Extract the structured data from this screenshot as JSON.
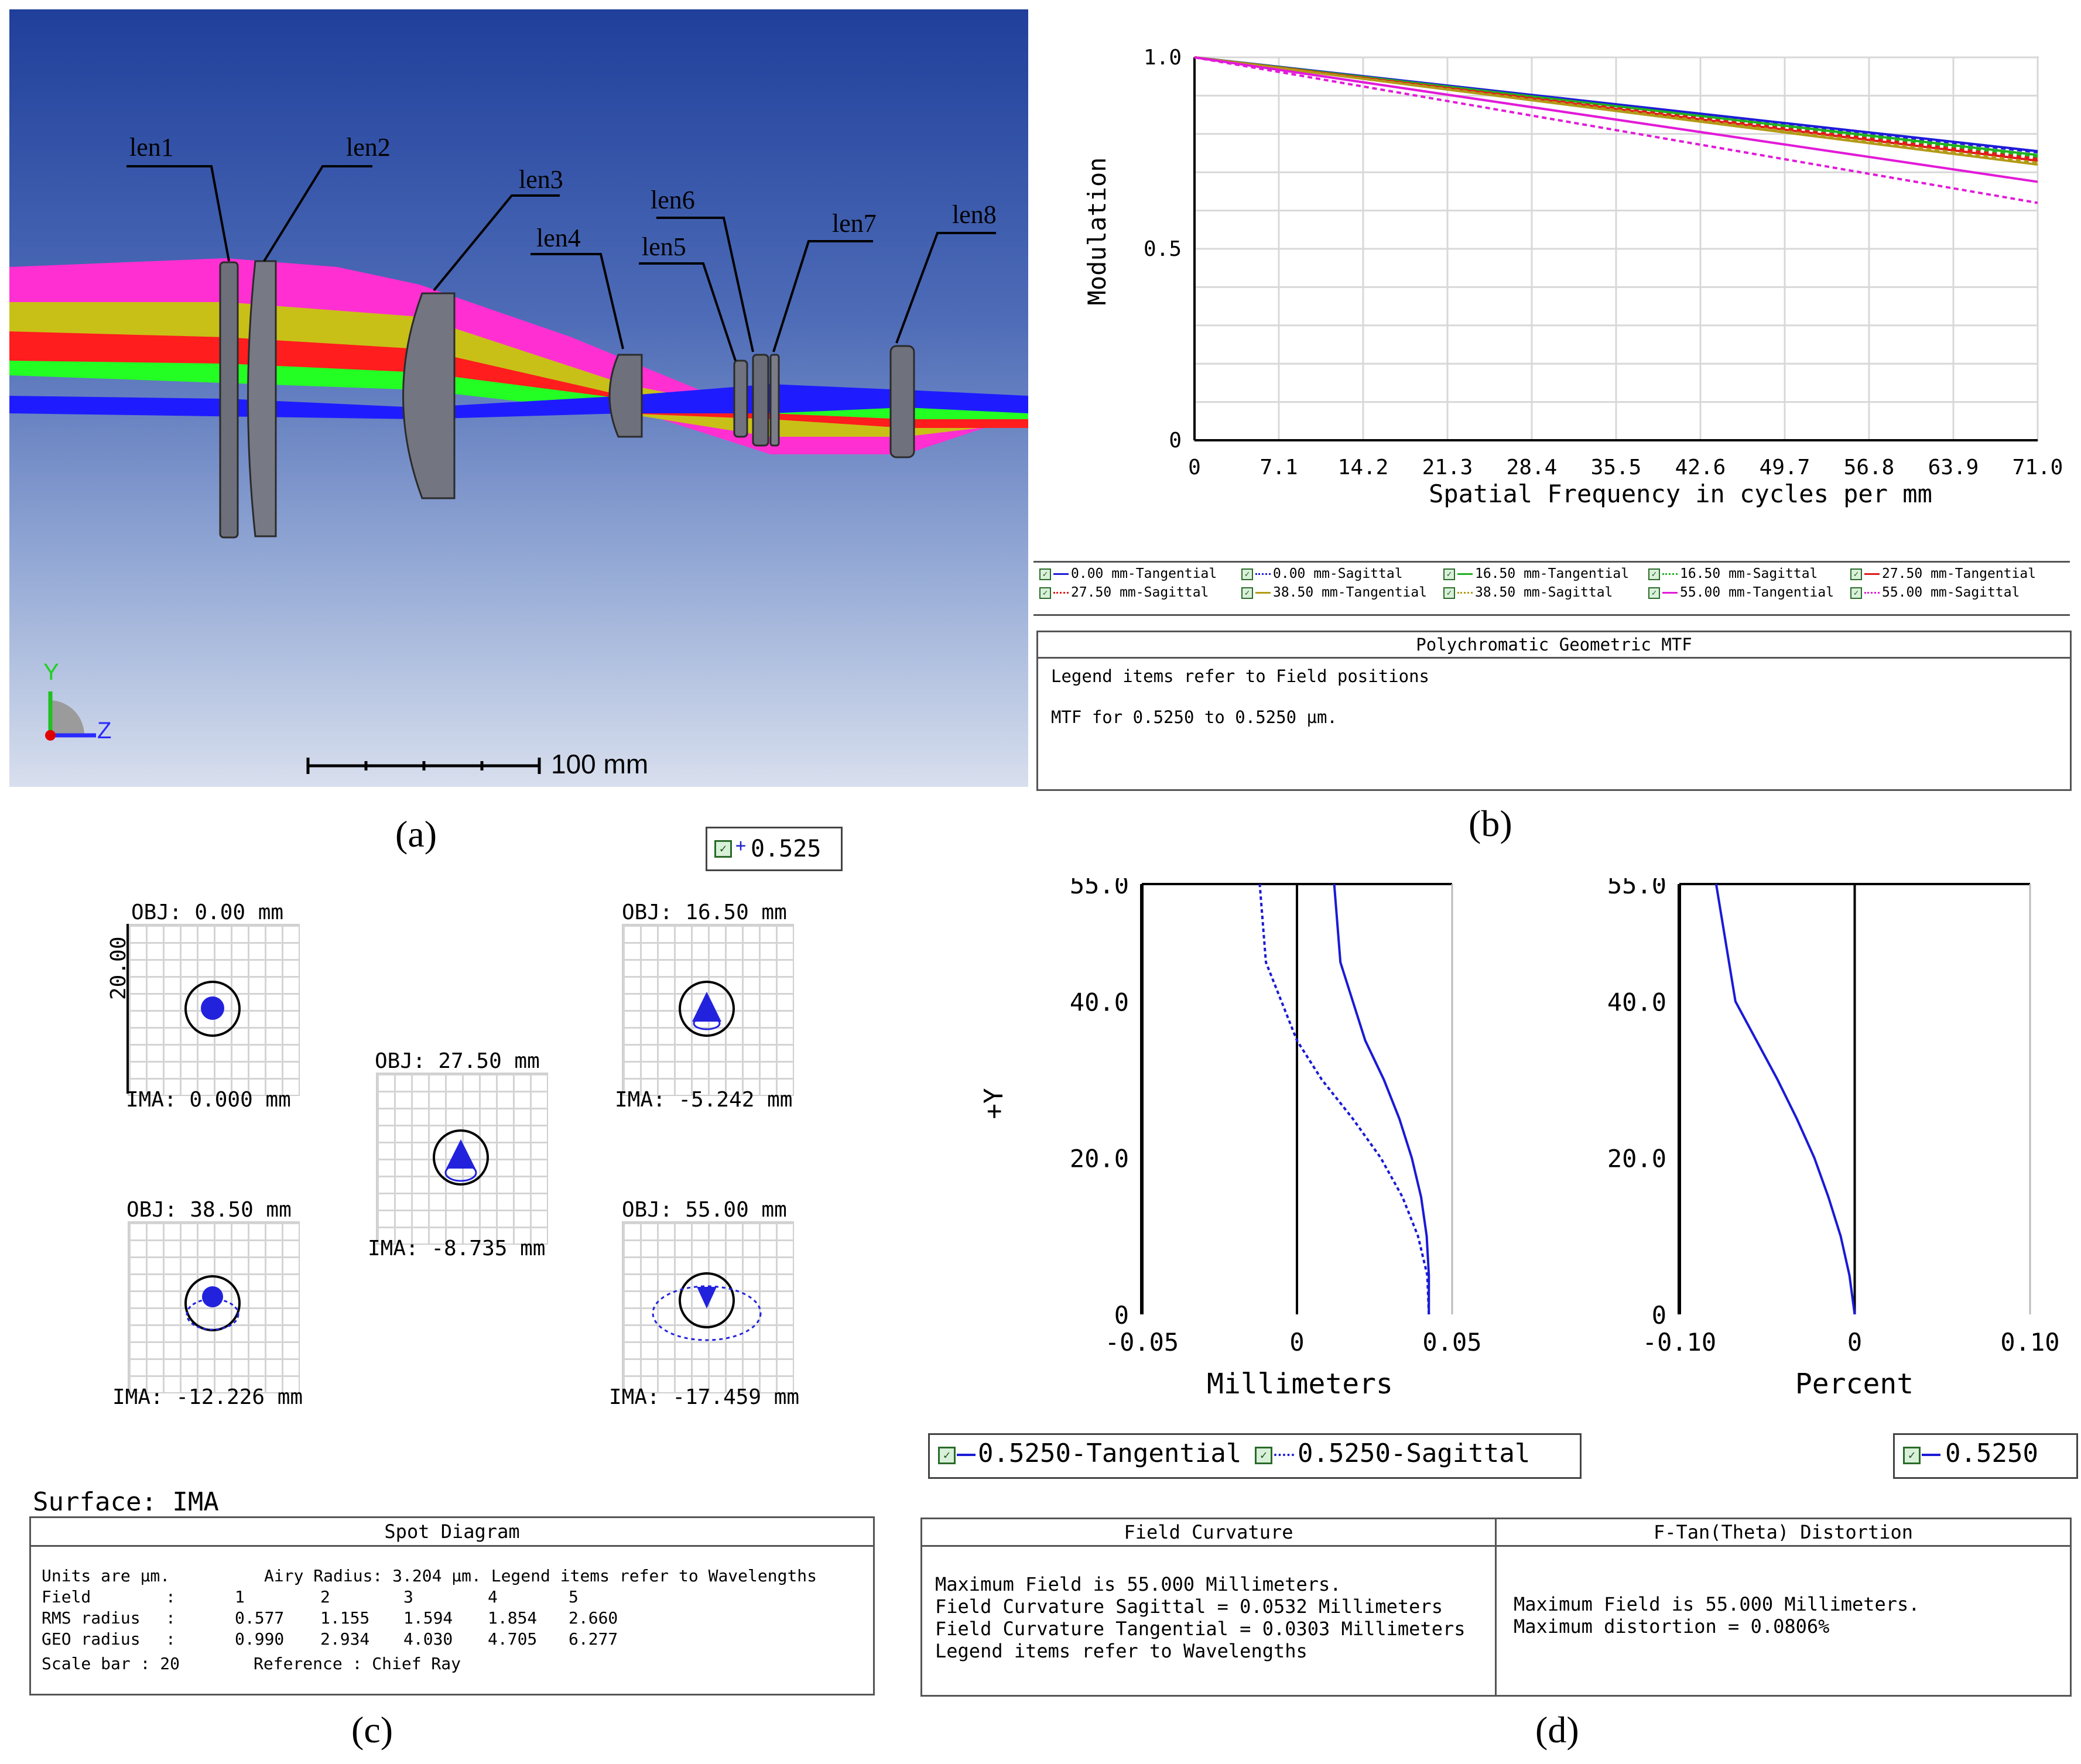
{
  "panel_a": {
    "lens_labels": [
      "len1",
      "len2",
      "len3",
      "len4",
      "len5",
      "len6",
      "len7",
      "len8"
    ],
    "axis_y": "Y",
    "axis_z": "Z",
    "scale_label": "100 mm",
    "caption": "(a)",
    "colors": {
      "magenta": "#ff2fd2",
      "yellow": "#c9c017",
      "red": "#ff1d1d",
      "green": "#23ff23",
      "blue": "#1e1cff"
    }
  },
  "panel_b": {
    "chart_data": {
      "type": "line",
      "title": "Polychromatic Geometric MTF",
      "xlabel": "Spatial Frequency in cycles per mm",
      "ylabel": "Modulation",
      "xlim": [
        0,
        71.0
      ],
      "ylim": [
        0,
        1.0
      ],
      "x_ticks": [
        "0",
        "7.1",
        "14.2",
        "21.3",
        "28.4",
        "35.5",
        "42.6",
        "49.7",
        "56.8",
        "63.9",
        "71.0"
      ],
      "y_ticks": [
        "0",
        "0.5",
        "1.0"
      ],
      "series": [
        {
          "name": "0.00 mm-Tangential",
          "color": "#1e1cd8",
          "dashed": false,
          "x": [
            0,
            71
          ],
          "values": [
            1.0,
            0.755
          ]
        },
        {
          "name": "0.00 mm-Sagittal",
          "color": "#1e1cd8",
          "dashed": true,
          "x": [
            0,
            71
          ],
          "values": [
            1.0,
            0.752
          ]
        },
        {
          "name": "16.50 mm-Tangential",
          "color": "#1fb31f",
          "dashed": false,
          "x": [
            0,
            71
          ],
          "values": [
            1.0,
            0.745
          ]
        },
        {
          "name": "16.50 mm-Sagittal",
          "color": "#1fb31f",
          "dashed": true,
          "x": [
            0,
            71
          ],
          "values": [
            1.0,
            0.74
          ]
        },
        {
          "name": "27.50 mm-Tangential",
          "color": "#e11b1b",
          "dashed": false,
          "x": [
            0,
            71
          ],
          "values": [
            1.0,
            0.73
          ]
        },
        {
          "name": "27.50 mm-Sagittal",
          "color": "#e11b1b",
          "dashed": true,
          "x": [
            0,
            71
          ],
          "values": [
            1.0,
            0.735
          ]
        },
        {
          "name": "38.50 mm-Tangential",
          "color": "#b39a16",
          "dashed": false,
          "x": [
            0,
            71
          ],
          "values": [
            1.0,
            0.72
          ]
        },
        {
          "name": "38.50 mm-Sagittal",
          "color": "#b39a16",
          "dashed": true,
          "x": [
            0,
            71
          ],
          "values": [
            1.0,
            0.725
          ]
        },
        {
          "name": "55.00 mm-Tangential",
          "color": "#e21ad8",
          "dashed": false,
          "x": [
            0,
            71
          ],
          "values": [
            1.0,
            0.675
          ]
        },
        {
          "name": "55.00 mm-Sagittal",
          "color": "#e21ad8",
          "dashed": true,
          "x": [
            0,
            71
          ],
          "values": [
            1.0,
            0.62
          ]
        }
      ]
    },
    "info_title": "Polychromatic Geometric MTF",
    "info_line1": "Legend items refer to Field positions",
    "info_line2": "MTF for 0.5250 to 0.5250 µm.",
    "caption": "(b)"
  },
  "panel_c": {
    "wavelength_legend": "0.525",
    "spots": [
      {
        "obj": "OBJ: 0.00 mm",
        "ima": "IMA: 0.000 mm"
      },
      {
        "obj": "OBJ: 16.50 mm",
        "ima": "IMA: -5.242 mm"
      },
      {
        "obj": "OBJ: 27.50 mm",
        "ima": "IMA: -8.735 mm"
      },
      {
        "obj": "OBJ: 38.50 mm",
        "ima": "IMA: -12.226 mm"
      },
      {
        "obj": "OBJ: 55.00 mm",
        "ima": "IMA: -17.459 mm"
      }
    ],
    "scale_label": "20.00",
    "surface": "Surface: IMA",
    "title": "Spot Diagram",
    "units_line": "Units are µm.",
    "airy_line": "Airy Radius: 3.204 µm. Legend items refer to Wavelengths",
    "table": {
      "header": [
        "Field",
        ":",
        "1",
        "2",
        "3",
        "4",
        "5"
      ],
      "rms": [
        "RMS radius",
        ":",
        "0.577",
        "1.155",
        "1.594",
        "1.854",
        "2.660"
      ],
      "geo": [
        "GEO radius",
        ":",
        "0.990",
        "2.934",
        "4.030",
        "4.705",
        "6.277"
      ]
    },
    "scale_bar": "Scale bar  : 20",
    "reference": "Reference   : Chief Ray",
    "caption": "(c)"
  },
  "panel_d": {
    "field_curvature": {
      "chart_data": {
        "type": "line",
        "title": "Field Curvature",
        "xlabel": "Millimeters",
        "ylabel": "+Y",
        "xlim": [
          -0.05,
          0.05
        ],
        "ylim": [
          0,
          55.0
        ],
        "x_ticks": [
          "-0.05",
          "0",
          "0.05"
        ],
        "y_ticks": [
          "0",
          "20.0",
          "40.0",
          "55.0"
        ],
        "series": [
          {
            "name": "0.5250-Tangential",
            "color": "#1a1ad6",
            "dashed": false,
            "x": [
              0.0425,
              0.0425,
              0.0418,
              0.04,
              0.037,
              0.033,
              0.028,
              0.022,
              0.018,
              0.014,
              0.012
            ],
            "values": [
              0,
              5,
              10,
              15,
              20,
              25,
              30,
              35,
              40,
              45,
              55
            ]
          },
          {
            "name": "0.5250-Sagittal",
            "color": "#1a1ad6",
            "dashed": true,
            "x": [
              0.0425,
              0.042,
              0.039,
              0.034,
              0.027,
              0.018,
              0.008,
              0.0,
              -0.005,
              -0.01,
              -0.012
            ],
            "values": [
              0,
              5,
              10,
              15,
              20,
              25,
              30,
              35,
              40,
              45,
              55
            ]
          }
        ]
      },
      "legend_tan": "0.5250-Tangential",
      "legend_sag": "0.5250-Sagittal"
    },
    "distortion": {
      "chart_data": {
        "type": "line",
        "title": "F-Tan(Theta) Distortion",
        "xlabel": "Percent",
        "ylabel": "",
        "xlim": [
          -0.1,
          0.1
        ],
        "ylim": [
          0,
          55.0
        ],
        "x_ticks": [
          "-0.10",
          "0",
          "0.10"
        ],
        "y_ticks": [
          "0",
          "20.0",
          "40.0",
          "55.0"
        ],
        "series": [
          {
            "name": "0.5250",
            "color": "#1a1ad6",
            "dashed": false,
            "x": [
              0,
              -0.003,
              -0.008,
              -0.015,
              -0.023,
              -0.033,
              -0.044,
              -0.056,
              -0.068,
              -0.079
            ],
            "values": [
              0,
              5,
              10,
              15,
              20,
              25,
              30,
              35,
              40,
              55
            ]
          }
        ]
      },
      "legend": "0.5250"
    },
    "fc_title": "Field Curvature",
    "fc_lines": [
      "Maximum Field is 55.000 Millimeters.",
      "Field Curvature Sagittal = 0.0532 Millimeters",
      "Field Curvature Tangential = 0.0303 Millimeters",
      "Legend items refer to Wavelengths"
    ],
    "dist_title": "F-Tan(Theta) Distortion",
    "dist_lines": [
      "Maximum Field is 55.000 Millimeters.",
      "Maximum distortion = 0.0806%"
    ],
    "caption": "(d)"
  }
}
